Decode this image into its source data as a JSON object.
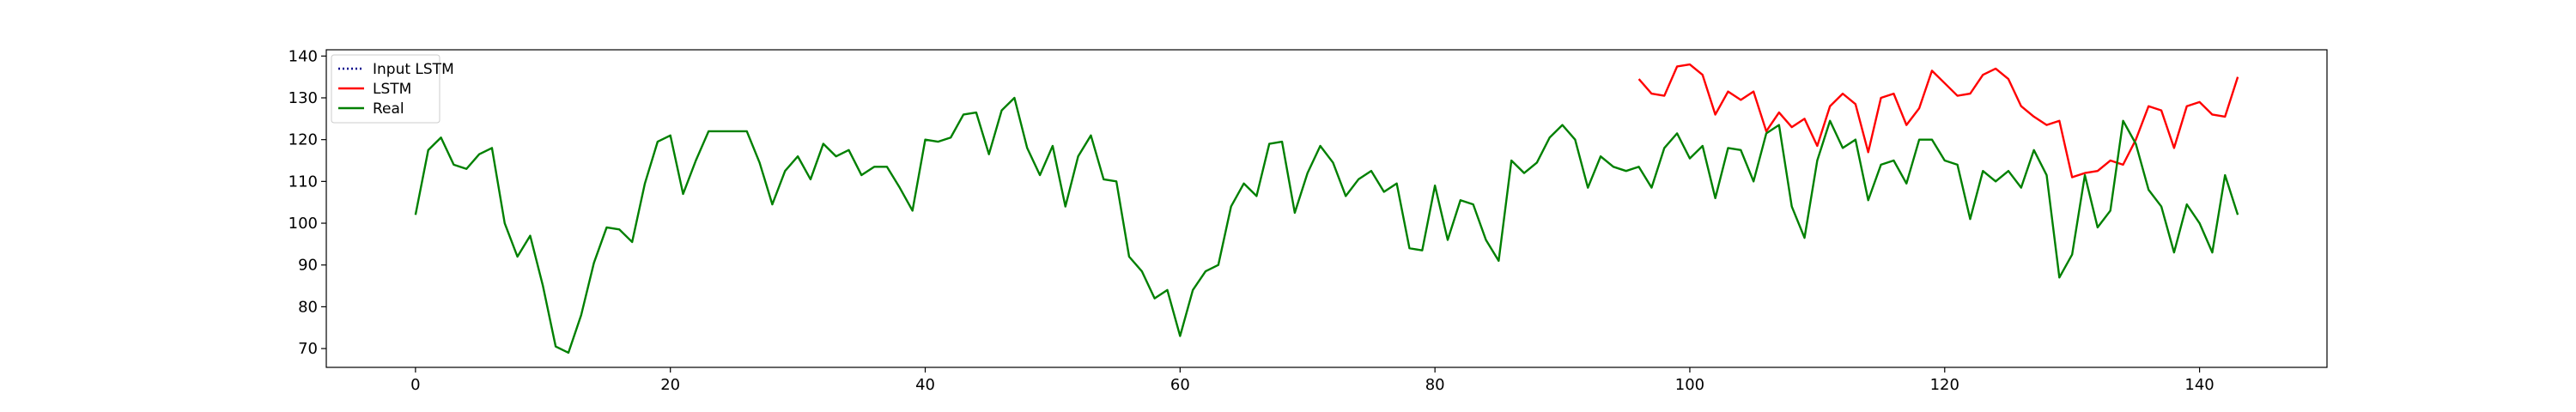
{
  "chart_data": {
    "type": "line",
    "title": "",
    "xlabel": "",
    "ylabel": "",
    "xlim": [
      -7,
      150
    ],
    "ylim": [
      65.5,
      141.5
    ],
    "xticks": [
      0,
      20,
      40,
      60,
      80,
      100,
      120,
      140
    ],
    "yticks": [
      70,
      80,
      90,
      100,
      110,
      120,
      130,
      140
    ],
    "grid": false,
    "legend_position": "top-left",
    "series": [
      {
        "name": "Input LSTM",
        "color": "#00008b",
        "style": "dotted",
        "x_start": 0,
        "values": []
      },
      {
        "name": "LSTM",
        "color": "#ff0000",
        "style": "solid",
        "x_start": 96,
        "values": [
          134.5,
          131,
          130.5,
          137.5,
          138,
          135.5,
          126,
          131.5,
          129.5,
          131.5,
          122,
          126.5,
          123,
          125,
          118.5,
          128,
          131,
          128.5,
          117,
          130,
          131,
          123.5,
          127.5,
          136.5,
          133.5,
          130.5,
          131,
          135.5,
          137,
          134.5,
          128,
          125.5,
          123.5,
          124.5,
          111,
          112,
          112.5,
          115,
          114,
          120,
          128,
          127,
          118,
          128,
          129,
          126,
          125.5,
          135
        ]
      },
      {
        "name": "Real",
        "color": "#008000",
        "style": "solid",
        "x_start": 0,
        "values": [
          102,
          117.5,
          120.5,
          114,
          113,
          116.5,
          118,
          100,
          92,
          97,
          85,
          70.5,
          69,
          78,
          90.5,
          99,
          98.5,
          95.5,
          109.5,
          119.5,
          121,
          107,
          115,
          122,
          122,
          122,
          122,
          114.5,
          104.5,
          112.5,
          116,
          110.5,
          119,
          116,
          117.5,
          111.5,
          113.5,
          113.5,
          108.5,
          103,
          120,
          119.5,
          120.5,
          126,
          126.5,
          116.5,
          127,
          130,
          118,
          111.5,
          118.5,
          104,
          116,
          121,
          110.5,
          110,
          92,
          88.5,
          82,
          84,
          73,
          84,
          88.5,
          90,
          104,
          109.5,
          106.5,
          119,
          119.5,
          102.5,
          112,
          118.5,
          114.5,
          106.5,
          110.5,
          112.5,
          107.5,
          109.5,
          94,
          93.5,
          109,
          96,
          105.5,
          104.5,
          96,
          91,
          115,
          112,
          114.5,
          120.5,
          123.5,
          120,
          108.5,
          116,
          113.5,
          112.5,
          113.5,
          108.5,
          118,
          121.5,
          115.5,
          118.5,
          106,
          118,
          117.5,
          110,
          121.5,
          123.5,
          104,
          96.5,
          115,
          124.5,
          118,
          120,
          105.5,
          114,
          115,
          109.5,
          120,
          120,
          115,
          114,
          101,
          112.5,
          110,
          112.5,
          108.5,
          117.5,
          111.5,
          87,
          92.5,
          111.5,
          99,
          103,
          124.5,
          119,
          108,
          104,
          93,
          104.5,
          100,
          93,
          111.5,
          102
        ]
      }
    ]
  }
}
